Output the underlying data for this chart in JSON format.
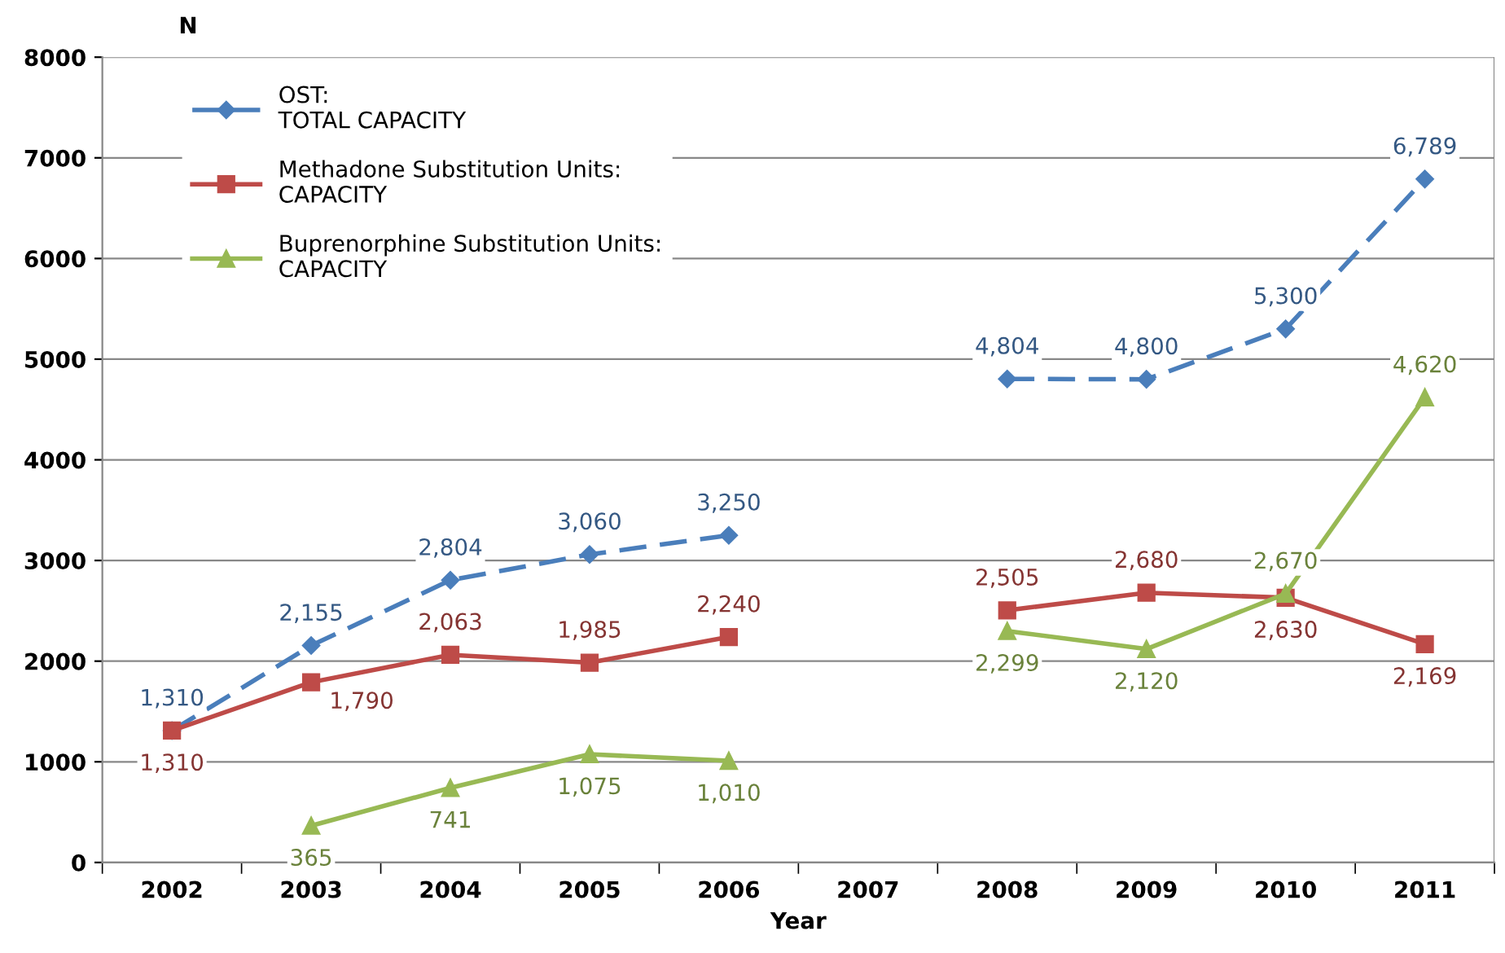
{
  "chart_data": {
    "type": "line",
    "ylabel": "N",
    "xlabel": "Year",
    "categories": [
      "2002",
      "2003",
      "2004",
      "2005",
      "2006",
      "2007",
      "2008",
      "2009",
      "2010",
      "2011"
    ],
    "series": [
      {
        "name": "OST:\nTOTAL CAPACITY",
        "color": "#4a7ebb",
        "line_style": "dashed",
        "marker": "diamond",
        "values": [
          1310,
          2155,
          2804,
          3060,
          3250,
          null,
          4804,
          4800,
          5300,
          6789
        ],
        "value_labels": [
          "1,310",
          "2,155",
          "2,804",
          "3,060",
          "3,250",
          null,
          "4,804",
          "4,800",
          "5,300",
          "6,789"
        ]
      },
      {
        "name": "Methadone Substitution Units:\nCAPACITY",
        "color": "#be4b48",
        "line_style": "solid",
        "marker": "square",
        "values": [
          1310,
          1790,
          2063,
          1985,
          2240,
          null,
          2505,
          2680,
          2630,
          2169
        ],
        "value_labels": [
          "1,310",
          "1,790",
          "2,063",
          "1,985",
          "2,240",
          null,
          "2,505",
          "2,680",
          "2,630",
          "2,169"
        ]
      },
      {
        "name": "Buprenorphine Substitution Units:\nCAPACITY",
        "color": "#98b954",
        "line_style": "solid",
        "marker": "triangle",
        "values": [
          null,
          365,
          741,
          1075,
          1010,
          null,
          2299,
          2120,
          2670,
          4620
        ],
        "value_labels": [
          null,
          "365",
          "741",
          "1,075",
          "1,010",
          null,
          "2,299",
          "2,120",
          "2,670",
          "4,620"
        ]
      }
    ],
    "ylim": [
      0,
      8000
    ],
    "yticks": [
      0,
      1000,
      2000,
      3000,
      4000,
      5000,
      6000,
      7000,
      8000
    ],
    "grid": "y",
    "legend": "top left"
  }
}
